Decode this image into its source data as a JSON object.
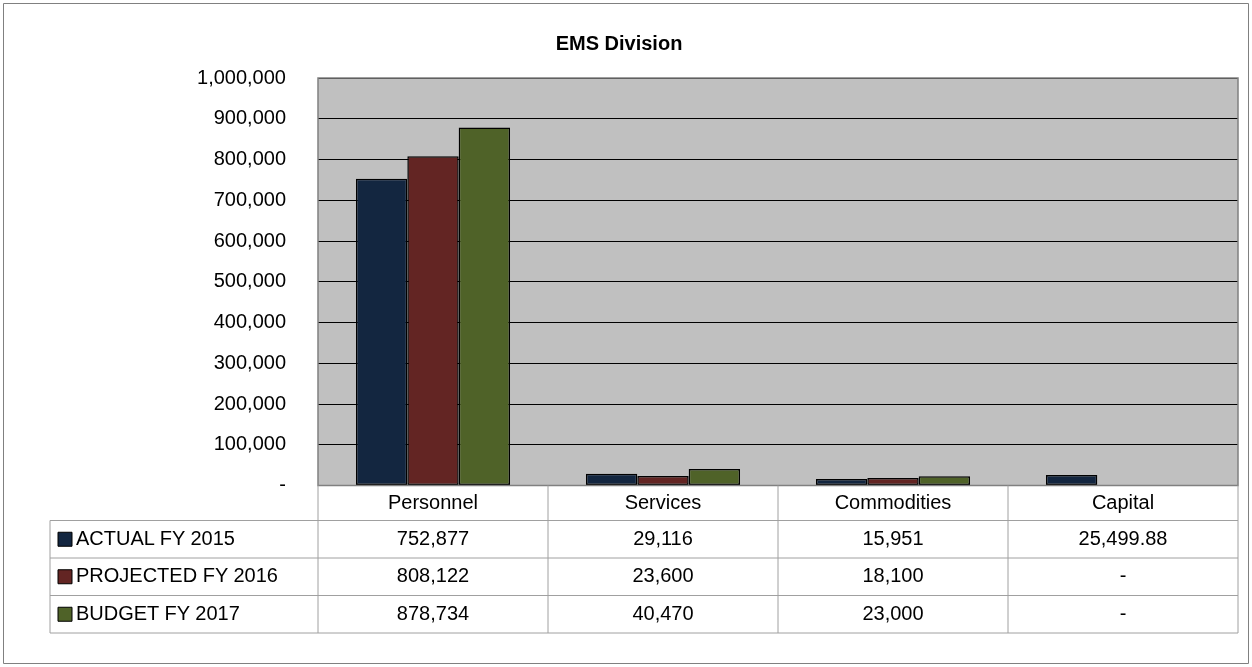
{
  "chart_data": {
    "type": "bar",
    "title": "EMS Division",
    "categories": [
      "Personnel",
      "Services",
      "Commodities",
      "Capital"
    ],
    "series": [
      {
        "name": "ACTUAL FY 2015",
        "color": "#132640",
        "values": [
          752877,
          29116,
          15951,
          25499.88
        ],
        "value_labels": [
          "752,877",
          "29,116",
          "15,951",
          "25,499.88"
        ]
      },
      {
        "name": "PROJECTED FY 2016",
        "color": "#632523",
        "values": [
          808122,
          23600,
          18100,
          0
        ],
        "value_labels": [
          "808,122",
          "23,600",
          "18,100",
          "-"
        ]
      },
      {
        "name": "BUDGET FY 2017",
        "color": "#4f6228",
        "values": [
          878734,
          40470,
          23000,
          0
        ],
        "value_labels": [
          "878,734",
          "40,470",
          "23,000",
          "-"
        ]
      }
    ],
    "ylim": [
      0,
      1000000
    ],
    "yticks": [
      {
        "value": 0,
        "label": "-"
      },
      {
        "value": 100000,
        "label": "100,000"
      },
      {
        "value": 200000,
        "label": "200,000"
      },
      {
        "value": 300000,
        "label": "300,000"
      },
      {
        "value": 400000,
        "label": "400,000"
      },
      {
        "value": 500000,
        "label": "500,000"
      },
      {
        "value": 600000,
        "label": "600,000"
      },
      {
        "value": 700000,
        "label": "700,000"
      },
      {
        "value": 800000,
        "label": "800,000"
      },
      {
        "value": 900000,
        "label": "900,000"
      },
      {
        "value": 1000000,
        "label": "1,000,000"
      }
    ],
    "grid": "y",
    "legend": "bottom"
  }
}
